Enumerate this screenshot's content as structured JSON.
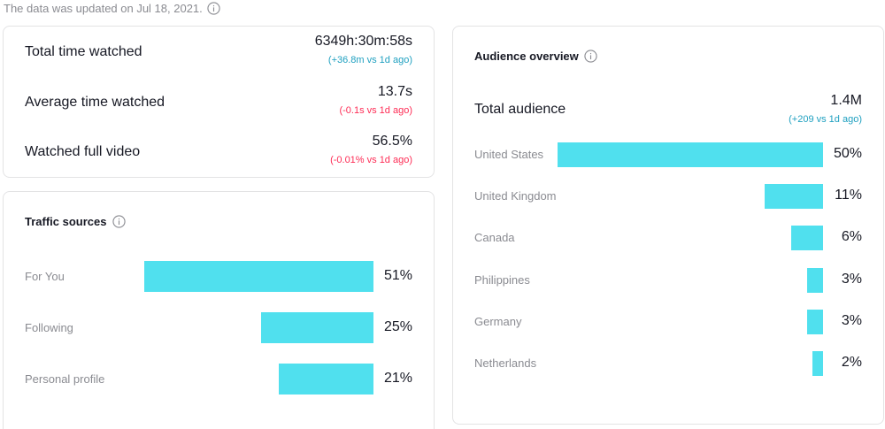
{
  "header": {
    "updated_text": "The data was updated on Jul 18, 2021."
  },
  "colors": {
    "positive": "#1fa0c0",
    "negative": "#fe2c55",
    "bar": "#50e0ee"
  },
  "metrics": [
    {
      "label": "Total time watched",
      "value": "6349h:30m:58s",
      "delta": "(+36.8m vs 1d ago)",
      "trend": "positive"
    },
    {
      "label": "Average time watched",
      "value": "13.7s",
      "delta": "(-0.1s vs 1d ago)",
      "trend": "negative"
    },
    {
      "label": "Watched full video",
      "value": "56.5%",
      "delta": "(-0.01% vs 1d ago)",
      "trend": "negative"
    }
  ],
  "traffic": {
    "title": "Traffic sources",
    "items": [
      {
        "label": "For You",
        "value": 51,
        "pct": "51%"
      },
      {
        "label": "Following",
        "value": 25,
        "pct": "25%"
      },
      {
        "label": "Personal profile",
        "value": 21,
        "pct": "21%"
      }
    ]
  },
  "audience": {
    "title": "Audience overview",
    "total_label": "Total audience",
    "total_value": "1.4M",
    "total_delta": "(+209 vs 1d ago)",
    "items": [
      {
        "label": "United States",
        "value": 50,
        "pct": "50%"
      },
      {
        "label": "United Kingdom",
        "value": 11,
        "pct": "11%"
      },
      {
        "label": "Canada",
        "value": 6,
        "pct": "6%"
      },
      {
        "label": "Philippines",
        "value": 3,
        "pct": "3%"
      },
      {
        "label": "Germany",
        "value": 3,
        "pct": "3%"
      },
      {
        "label": "Netherlands",
        "value": 2,
        "pct": "2%"
      }
    ]
  }
}
